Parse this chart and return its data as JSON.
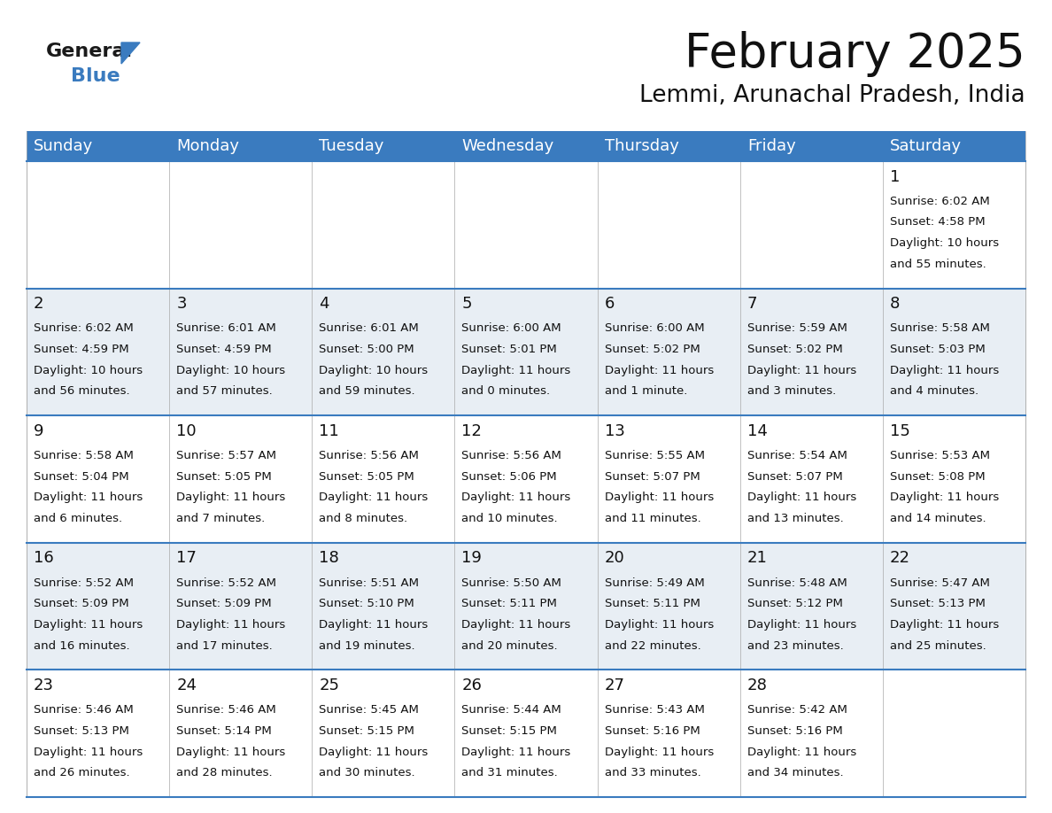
{
  "title": "February 2025",
  "subtitle": "Lemmi, Arunachal Pradesh, India",
  "header_bg_color": "#3a7bbf",
  "header_text_color": "#ffffff",
  "cell_bg_light": "#e8eef4",
  "cell_bg_white": "#ffffff",
  "grid_line_color": "#3a7bbf",
  "day_names": [
    "Sunday",
    "Monday",
    "Tuesday",
    "Wednesday",
    "Thursday",
    "Friday",
    "Saturday"
  ],
  "calendar_data": [
    [
      null,
      null,
      null,
      null,
      null,
      null,
      {
        "day": "1",
        "sunrise": "6:02 AM",
        "sunset": "4:58 PM",
        "daylight_line1": "Daylight: 10 hours",
        "daylight_line2": "and 55 minutes."
      }
    ],
    [
      {
        "day": "2",
        "sunrise": "6:02 AM",
        "sunset": "4:59 PM",
        "daylight_line1": "Daylight: 10 hours",
        "daylight_line2": "and 56 minutes."
      },
      {
        "day": "3",
        "sunrise": "6:01 AM",
        "sunset": "4:59 PM",
        "daylight_line1": "Daylight: 10 hours",
        "daylight_line2": "and 57 minutes."
      },
      {
        "day": "4",
        "sunrise": "6:01 AM",
        "sunset": "5:00 PM",
        "daylight_line1": "Daylight: 10 hours",
        "daylight_line2": "and 59 minutes."
      },
      {
        "day": "5",
        "sunrise": "6:00 AM",
        "sunset": "5:01 PM",
        "daylight_line1": "Daylight: 11 hours",
        "daylight_line2": "and 0 minutes."
      },
      {
        "day": "6",
        "sunrise": "6:00 AM",
        "sunset": "5:02 PM",
        "daylight_line1": "Daylight: 11 hours",
        "daylight_line2": "and 1 minute."
      },
      {
        "day": "7",
        "sunrise": "5:59 AM",
        "sunset": "5:02 PM",
        "daylight_line1": "Daylight: 11 hours",
        "daylight_line2": "and 3 minutes."
      },
      {
        "day": "8",
        "sunrise": "5:58 AM",
        "sunset": "5:03 PM",
        "daylight_line1": "Daylight: 11 hours",
        "daylight_line2": "and 4 minutes."
      }
    ],
    [
      {
        "day": "9",
        "sunrise": "5:58 AM",
        "sunset": "5:04 PM",
        "daylight_line1": "Daylight: 11 hours",
        "daylight_line2": "and 6 minutes."
      },
      {
        "day": "10",
        "sunrise": "5:57 AM",
        "sunset": "5:05 PM",
        "daylight_line1": "Daylight: 11 hours",
        "daylight_line2": "and 7 minutes."
      },
      {
        "day": "11",
        "sunrise": "5:56 AM",
        "sunset": "5:05 PM",
        "daylight_line1": "Daylight: 11 hours",
        "daylight_line2": "and 8 minutes."
      },
      {
        "day": "12",
        "sunrise": "5:56 AM",
        "sunset": "5:06 PM",
        "daylight_line1": "Daylight: 11 hours",
        "daylight_line2": "and 10 minutes."
      },
      {
        "day": "13",
        "sunrise": "5:55 AM",
        "sunset": "5:07 PM",
        "daylight_line1": "Daylight: 11 hours",
        "daylight_line2": "and 11 minutes."
      },
      {
        "day": "14",
        "sunrise": "5:54 AM",
        "sunset": "5:07 PM",
        "daylight_line1": "Daylight: 11 hours",
        "daylight_line2": "and 13 minutes."
      },
      {
        "day": "15",
        "sunrise": "5:53 AM",
        "sunset": "5:08 PM",
        "daylight_line1": "Daylight: 11 hours",
        "daylight_line2": "and 14 minutes."
      }
    ],
    [
      {
        "day": "16",
        "sunrise": "5:52 AM",
        "sunset": "5:09 PM",
        "daylight_line1": "Daylight: 11 hours",
        "daylight_line2": "and 16 minutes."
      },
      {
        "day": "17",
        "sunrise": "5:52 AM",
        "sunset": "5:09 PM",
        "daylight_line1": "Daylight: 11 hours",
        "daylight_line2": "and 17 minutes."
      },
      {
        "day": "18",
        "sunrise": "5:51 AM",
        "sunset": "5:10 PM",
        "daylight_line1": "Daylight: 11 hours",
        "daylight_line2": "and 19 minutes."
      },
      {
        "day": "19",
        "sunrise": "5:50 AM",
        "sunset": "5:11 PM",
        "daylight_line1": "Daylight: 11 hours",
        "daylight_line2": "and 20 minutes."
      },
      {
        "day": "20",
        "sunrise": "5:49 AM",
        "sunset": "5:11 PM",
        "daylight_line1": "Daylight: 11 hours",
        "daylight_line2": "and 22 minutes."
      },
      {
        "day": "21",
        "sunrise": "5:48 AM",
        "sunset": "5:12 PM",
        "daylight_line1": "Daylight: 11 hours",
        "daylight_line2": "and 23 minutes."
      },
      {
        "day": "22",
        "sunrise": "5:47 AM",
        "sunset": "5:13 PM",
        "daylight_line1": "Daylight: 11 hours",
        "daylight_line2": "and 25 minutes."
      }
    ],
    [
      {
        "day": "23",
        "sunrise": "5:46 AM",
        "sunset": "5:13 PM",
        "daylight_line1": "Daylight: 11 hours",
        "daylight_line2": "and 26 minutes."
      },
      {
        "day": "24",
        "sunrise": "5:46 AM",
        "sunset": "5:14 PM",
        "daylight_line1": "Daylight: 11 hours",
        "daylight_line2": "and 28 minutes."
      },
      {
        "day": "25",
        "sunrise": "5:45 AM",
        "sunset": "5:15 PM",
        "daylight_line1": "Daylight: 11 hours",
        "daylight_line2": "and 30 minutes."
      },
      {
        "day": "26",
        "sunrise": "5:44 AM",
        "sunset": "5:15 PM",
        "daylight_line1": "Daylight: 11 hours",
        "daylight_line2": "and 31 minutes."
      },
      {
        "day": "27",
        "sunrise": "5:43 AM",
        "sunset": "5:16 PM",
        "daylight_line1": "Daylight: 11 hours",
        "daylight_line2": "and 33 minutes."
      },
      {
        "day": "28",
        "sunrise": "5:42 AM",
        "sunset": "5:16 PM",
        "daylight_line1": "Daylight: 11 hours",
        "daylight_line2": "and 34 minutes."
      },
      null
    ]
  ],
  "title_fontsize": 38,
  "subtitle_fontsize": 19,
  "header_fontsize": 13,
  "day_num_fontsize": 13,
  "cell_text_fontsize": 9.5
}
